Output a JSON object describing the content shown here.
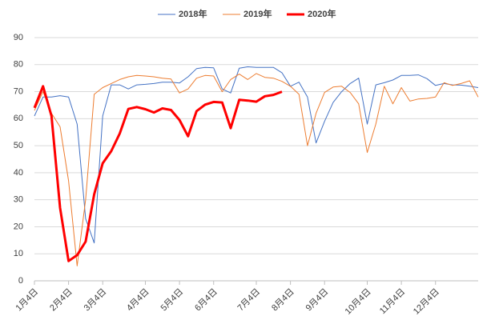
{
  "chart_data": {
    "type": "line",
    "categories": [
      "1月4日",
      null,
      null,
      null,
      "2月4日",
      null,
      null,
      null,
      "3月4日",
      null,
      null,
      null,
      null,
      "4月4日",
      null,
      null,
      null,
      "5月4日",
      null,
      null,
      null,
      "6月4日",
      null,
      null,
      null,
      null,
      "7月4日",
      null,
      null,
      null,
      "8月4日",
      null,
      null,
      null,
      "9月4日",
      null,
      null,
      null,
      null,
      "10月4日",
      null,
      null,
      null,
      "11月4日",
      null,
      null,
      null,
      "12月4日",
      null,
      null,
      null,
      null,
      null
    ],
    "series": [
      {
        "name": "2018年",
        "color": "#4472c4",
        "width": 1,
        "values": [
          61,
          68,
          68,
          68.5,
          68,
          58,
          23,
          14,
          61,
          72.5,
          72.5,
          71,
          72.5,
          72.7,
          73,
          73.5,
          73.5,
          73.2,
          75.5,
          78.5,
          79,
          78.8,
          71,
          69.5,
          78.7,
          79.2,
          79,
          79,
          79,
          77,
          72,
          73.5,
          68,
          51,
          59,
          66,
          70,
          73,
          75,
          58,
          72.5,
          73.3,
          74.3,
          76,
          76,
          76.2,
          74.8,
          72.3,
          73,
          72.5,
          72.4,
          72,
          71.5
        ]
      },
      {
        "name": "2019年",
        "color": "#ed7d31",
        "width": 1,
        "values": [
          63,
          70,
          62,
          57,
          37,
          5.5,
          30,
          69,
          71.5,
          73,
          74.5,
          75.5,
          76,
          75.8,
          75.5,
          75,
          74.7,
          69.5,
          71,
          75,
          76,
          75.8,
          70,
          74.5,
          76.5,
          74.5,
          76.7,
          75.3,
          75,
          73.8,
          72,
          69,
          50,
          62,
          69.7,
          71.7,
          72,
          69.7,
          65.5,
          47.5,
          58,
          72,
          65.5,
          71.5,
          66.5,
          67.3,
          67.5,
          68,
          73.3,
          72.3,
          73,
          74,
          68
        ]
      },
      {
        "name": "2020年",
        "color": "#ff0000",
        "width": 3,
        "values": [
          64,
          72,
          61,
          27,
          7.3,
          9.5,
          14.5,
          32,
          43.5,
          48,
          54.5,
          63.6,
          64.3,
          63.5,
          62.3,
          63.8,
          63.2,
          59.5,
          53.5,
          62.8,
          65.2,
          66.2,
          66,
          56.5,
          67,
          66.7,
          66.3,
          68.3,
          68.8,
          70,
          null,
          null,
          null,
          null,
          null,
          null,
          null,
          null,
          null,
          null,
          null,
          null,
          null,
          null,
          null,
          null,
          null,
          null,
          null,
          null,
          null,
          null,
          null
        ]
      }
    ],
    "ylim": [
      0,
      90
    ],
    "yticks": [
      0,
      10,
      20,
      30,
      40,
      50,
      60,
      70,
      80,
      90
    ],
    "grid": true,
    "legend": "top"
  }
}
